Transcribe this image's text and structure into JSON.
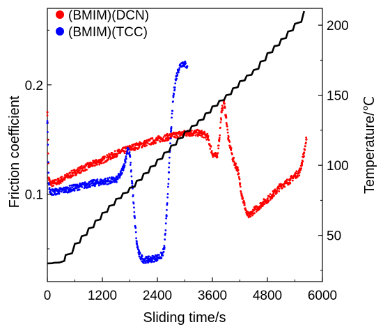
{
  "chart_data": {
    "type": "scatter",
    "x_axis": {
      "label": "Sliding time/s",
      "range": [
        0,
        6000
      ],
      "ticks": [
        0,
        1200,
        2400,
        3600,
        4800,
        6000
      ],
      "tick_labels": [
        "0",
        "1200",
        "2400",
        "3600",
        "4800",
        "6000"
      ]
    },
    "y_axis_left": {
      "label": "Friction coefficient",
      "range": [
        0.02,
        0.27
      ],
      "ticks": [
        0.1,
        0.2
      ],
      "tick_labels": [
        "0.1",
        "0.2"
      ]
    },
    "y_axis_right": {
      "label": "Temperature/℃",
      "range": [
        17,
        212
      ],
      "ticks": [
        50,
        100,
        150,
        200
      ],
      "tick_labels": [
        "50",
        "100",
        "150",
        "200"
      ]
    },
    "legend": {
      "placement": "top-left",
      "entries": [
        {
          "label": "(BMIM)(DCN)",
          "color": "#ff0000"
        },
        {
          "label": "(BMIM)(TCC)",
          "color": "#0000ff"
        }
      ]
    },
    "series": [
      {
        "name": "(BMIM)(DCN)",
        "color": "#ff0000",
        "axis": "left",
        "style": "points",
        "x": [
          0,
          30,
          60,
          150,
          300,
          600,
          900,
          1200,
          1500,
          1800,
          2100,
          2400,
          2700,
          2900,
          3100,
          3300,
          3400,
          3500,
          3600,
          3700,
          3750,
          3800,
          3850,
          3900,
          3950,
          4000,
          4050,
          4100,
          4150,
          4200,
          4250,
          4300,
          4350,
          4400,
          4450,
          4500,
          4600,
          4700,
          4800,
          4900,
          5000,
          5100,
          5200,
          5300,
          5400,
          5500,
          5550,
          5600,
          5650
        ],
        "y": [
          0.175,
          0.115,
          0.11,
          0.11,
          0.113,
          0.12,
          0.126,
          0.131,
          0.137,
          0.142,
          0.146,
          0.15,
          0.153,
          0.155,
          0.156,
          0.156,
          0.155,
          0.152,
          0.137,
          0.134,
          0.15,
          0.175,
          0.185,
          0.17,
          0.15,
          0.142,
          0.132,
          0.127,
          0.123,
          0.11,
          0.098,
          0.09,
          0.082,
          0.08,
          0.082,
          0.085,
          0.088,
          0.092,
          0.095,
          0.099,
          0.103,
          0.108,
          0.11,
          0.113,
          0.117,
          0.12,
          0.128,
          0.138,
          0.15
        ]
      },
      {
        "name": "(BMIM)(TCC)",
        "color": "#0000ff",
        "axis": "left",
        "style": "points",
        "x": [
          0,
          30,
          60,
          150,
          400,
          700,
          1000,
          1300,
          1500,
          1600,
          1700,
          1750,
          1800,
          1850,
          1900,
          1950,
          2000,
          2050,
          2100,
          2200,
          2300,
          2400,
          2500,
          2550,
          2600,
          2650,
          2700,
          2750,
          2800,
          2850,
          2900,
          2950,
          3000,
          3050
        ],
        "y": [
          0.165,
          0.11,
          0.102,
          0.102,
          0.104,
          0.107,
          0.11,
          0.112,
          0.113,
          0.118,
          0.13,
          0.142,
          0.135,
          0.11,
          0.08,
          0.055,
          0.045,
          0.042,
          0.04,
          0.04,
          0.041,
          0.042,
          0.044,
          0.05,
          0.08,
          0.12,
          0.16,
          0.19,
          0.205,
          0.213,
          0.218,
          0.22,
          0.219,
          0.217
        ]
      },
      {
        "name": "",
        "color": "#000000",
        "axis": "right",
        "style": "stepped-line",
        "x": [
          0,
          300,
          400,
          600,
          900,
          1200,
          1500,
          1800,
          2100,
          2400,
          2700,
          3000,
          3300,
          3600,
          3900,
          4200,
          4500,
          4800,
          5100,
          5400,
          5600
        ],
        "y": [
          30,
          31,
          36,
          44,
          55,
          66,
          76,
          84,
          94,
          104,
          114,
          124,
          132,
          142,
          150,
          160,
          168,
          180,
          190,
          201,
          210
        ]
      }
    ]
  }
}
